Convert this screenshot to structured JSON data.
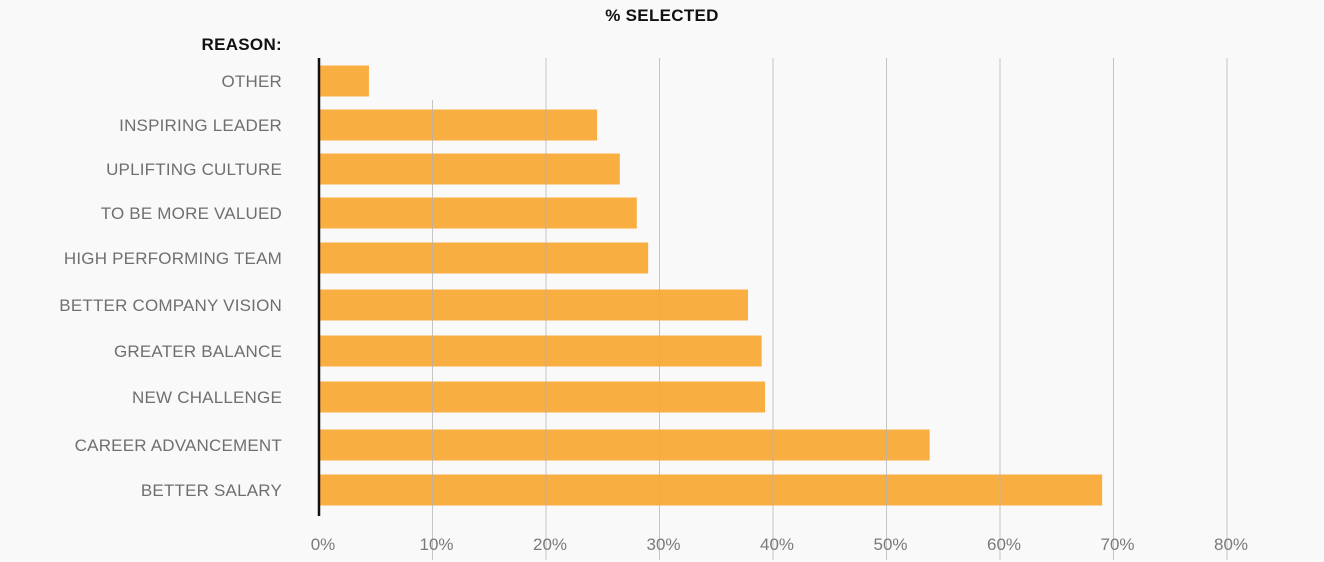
{
  "chart_data": {
    "type": "bar",
    "orientation": "horizontal",
    "title": "% SELECTED",
    "ylabel": "REASON:",
    "categories": [
      "OTHER",
      "INSPIRING LEADER",
      "UPLIFTING CULTURE",
      "TO BE MORE VALUED",
      "HIGH PERFORMING TEAM",
      "BETTER COMPANY VISION",
      "GREATER BALANCE",
      "NEW CHALLENGE",
      "CAREER ADVANCEMENT",
      "BETTER SALARY"
    ],
    "values": [
      4.4,
      24.5,
      26.5,
      28.0,
      29.0,
      37.8,
      39.0,
      39.3,
      53.8,
      69.0
    ],
    "xlim": [
      0,
      80
    ],
    "xticks": [
      0,
      10,
      20,
      30,
      40,
      50,
      60,
      70,
      80
    ],
    "xtick_labels": [
      "0%",
      "10%",
      "20%",
      "30%",
      "40%",
      "50%",
      "60%",
      "70%",
      "80%"
    ],
    "grid": true,
    "legend": "none",
    "colors": {
      "bar": "#f9ae42",
      "grid": "#b3b3b3",
      "axis": "#111111",
      "category_text": "#6f6f6f",
      "tick_text": "#7a7a7a",
      "background": "#f9f9f9"
    }
  }
}
